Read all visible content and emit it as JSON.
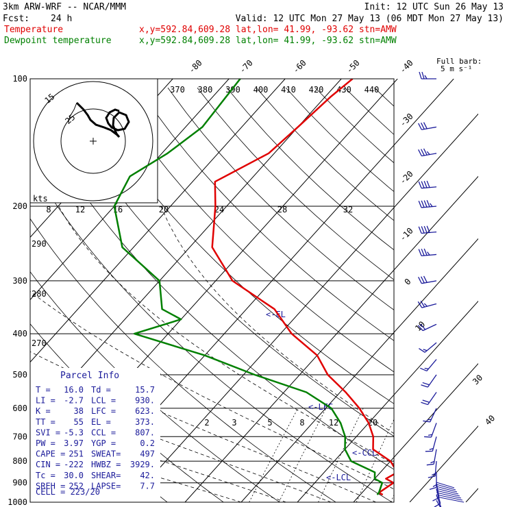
{
  "header": {
    "model": "3km ARW-WRF -- NCAR/MMM",
    "init": "Init: 12 UTC Sun 26 May 13",
    "fcst_label": "Fcst:",
    "fcst_value": "24 h",
    "valid": "Valid: 12 UTC Mon 27 May 13 (06 MDT Mon 27 May 13)",
    "temp_label": "Temperature",
    "temp_info": "x,y=592.84,609.28   lat,lon= 41.99, -93.62  stn=AMW",
    "dew_label": "Dewpoint temperature",
    "dew_info": "x,y=592.84,609.28   lat,lon= 41.99, -93.62  stn=AMW",
    "barb_note1": "Full barb:",
    "barb_note2": "5 m s⁻¹"
  },
  "colors": {
    "temperature": "#e00000",
    "dewpoint": "#008000",
    "wind": "#1a1a9a",
    "annotation": "#1a1a9a"
  },
  "chart_data": {
    "type": "line",
    "pressure_ticks": [
      "100",
      "200",
      "300",
      "400",
      "500",
      "600",
      "700",
      "800",
      "900",
      "1000"
    ],
    "isotherm_labels": [
      "-80",
      "-70",
      "-60",
      "-50",
      "-40",
      "-30",
      "-20",
      "-10",
      "0",
      "10",
      "30",
      "40"
    ],
    "theta_labels": [
      "370",
      "380",
      "390",
      "400",
      "410",
      "420",
      "430",
      "440"
    ],
    "dry_adiabat_labels": [
      "290",
      "280",
      "270"
    ],
    "wind_speed_labels": [
      "8",
      "12",
      "16",
      "20",
      "24",
      "28",
      "32"
    ],
    "wind_units": "kts",
    "mixing_ratio_labels": [
      "2",
      "3",
      "5",
      "8",
      "12",
      "20"
    ],
    "hodograph_labels": [
      "15",
      "25"
    ],
    "level_labels": [
      "<-EL",
      "<-LFC",
      "<-CCL",
      "<-LCL"
    ],
    "series": [
      {
        "name": "Temperature",
        "points": [
          [
            100,
            -58
          ],
          [
            110,
            -59
          ],
          [
            130,
            -60
          ],
          [
            150,
            -61
          ],
          [
            175,
            -66
          ],
          [
            200,
            -62
          ],
          [
            250,
            -56
          ],
          [
            300,
            -47
          ],
          [
            350,
            -35
          ],
          [
            400,
            -28
          ],
          [
            450,
            -20
          ],
          [
            500,
            -15
          ],
          [
            550,
            -9
          ],
          [
            600,
            -4
          ],
          [
            650,
            0
          ],
          [
            700,
            3
          ],
          [
            750,
            5
          ],
          [
            800,
            10
          ],
          [
            850,
            13
          ],
          [
            880,
            12
          ],
          [
            900,
            14
          ],
          [
            950,
            13
          ],
          [
            960,
            14
          ]
        ]
      },
      {
        "name": "Dewpoint temperature",
        "points": [
          [
            100,
            -78
          ],
          [
            130,
            -77
          ],
          [
            150,
            -79
          ],
          [
            170,
            -82
          ],
          [
            200,
            -80
          ],
          [
            250,
            -72
          ],
          [
            300,
            -60
          ],
          [
            350,
            -55
          ],
          [
            370,
            -50
          ],
          [
            400,
            -56
          ],
          [
            450,
            -40
          ],
          [
            500,
            -28
          ],
          [
            550,
            -16
          ],
          [
            600,
            -9
          ],
          [
            650,
            -5
          ],
          [
            700,
            -2
          ],
          [
            750,
            0
          ],
          [
            800,
            3
          ],
          [
            850,
            9
          ],
          [
            880,
            10
          ],
          [
            900,
            12
          ],
          [
            950,
            13
          ],
          [
            960,
            13
          ]
        ]
      }
    ]
  },
  "parcel": {
    "title": "Parcel Info",
    "rows": [
      {
        "l1": "T",
        "v1": "16.0",
        "l2": "Td",
        "v2": "15.7"
      },
      {
        "l1": "LI",
        "v1": "-2.7",
        "l2": "LCL",
        "v2": "930."
      },
      {
        "l1": "K",
        "v1": "38",
        "l2": "LFC",
        "v2": "623."
      },
      {
        "l1": "TT",
        "v1": "55",
        "l2": "EL",
        "v2": "373."
      },
      {
        "l1": "SVI",
        "v1": "-5.3",
        "l2": "CCL",
        "v2": "807."
      },
      {
        "l1": "PW",
        "v1": "3.97",
        "l2": "YGP",
        "v2": "0.2"
      },
      {
        "l1": "CAPE",
        "v1": "251",
        "l2": "SWEAT",
        "v2": "497"
      },
      {
        "l1": "CIN",
        "v1": "-222",
        "l2": "HWBZ",
        "v2": "3929."
      },
      {
        "l1": "Tc",
        "v1": "30.0",
        "l2": "SHEAR",
        "v2": "42."
      },
      {
        "l1": "SREH",
        "v1": "252",
        "l2": "LAPSE",
        "v2": "7.7"
      }
    ],
    "cell": "CELL = 223/20"
  },
  "winds": [
    {
      "p": 100,
      "spd": 25,
      "dir": 270
    },
    {
      "p": 130,
      "spd": 30,
      "dir": 260
    },
    {
      "p": 150,
      "spd": 35,
      "dir": 260
    },
    {
      "p": 180,
      "spd": 40,
      "dir": 265
    },
    {
      "p": 200,
      "spd": 45,
      "dir": 265
    },
    {
      "p": 230,
      "spd": 40,
      "dir": 265
    },
    {
      "p": 260,
      "spd": 35,
      "dir": 265
    },
    {
      "p": 300,
      "spd": 30,
      "dir": 260
    },
    {
      "p": 340,
      "spd": 25,
      "dir": 255
    },
    {
      "p": 380,
      "spd": 20,
      "dir": 245
    },
    {
      "p": 420,
      "spd": 15,
      "dir": 230
    },
    {
      "p": 460,
      "spd": 15,
      "dir": 220
    },
    {
      "p": 500,
      "spd": 20,
      "dir": 215
    },
    {
      "p": 550,
      "spd": 20,
      "dir": 215
    },
    {
      "p": 600,
      "spd": 15,
      "dir": 205
    },
    {
      "p": 650,
      "spd": 15,
      "dir": 200
    },
    {
      "p": 700,
      "spd": 15,
      "dir": 195
    },
    {
      "p": 750,
      "spd": 15,
      "dir": 190
    },
    {
      "p": 800,
      "spd": 15,
      "dir": 185
    },
    {
      "p": 850,
      "spd": 15,
      "dir": 180
    },
    {
      "p": 900,
      "spd": 10,
      "dir": 170
    },
    {
      "p": 930,
      "spd": 10,
      "dir": 165
    },
    {
      "p": 960,
      "spd": 10,
      "dir": 160
    },
    {
      "p": 990,
      "spd": 10,
      "dir": 150
    }
  ]
}
